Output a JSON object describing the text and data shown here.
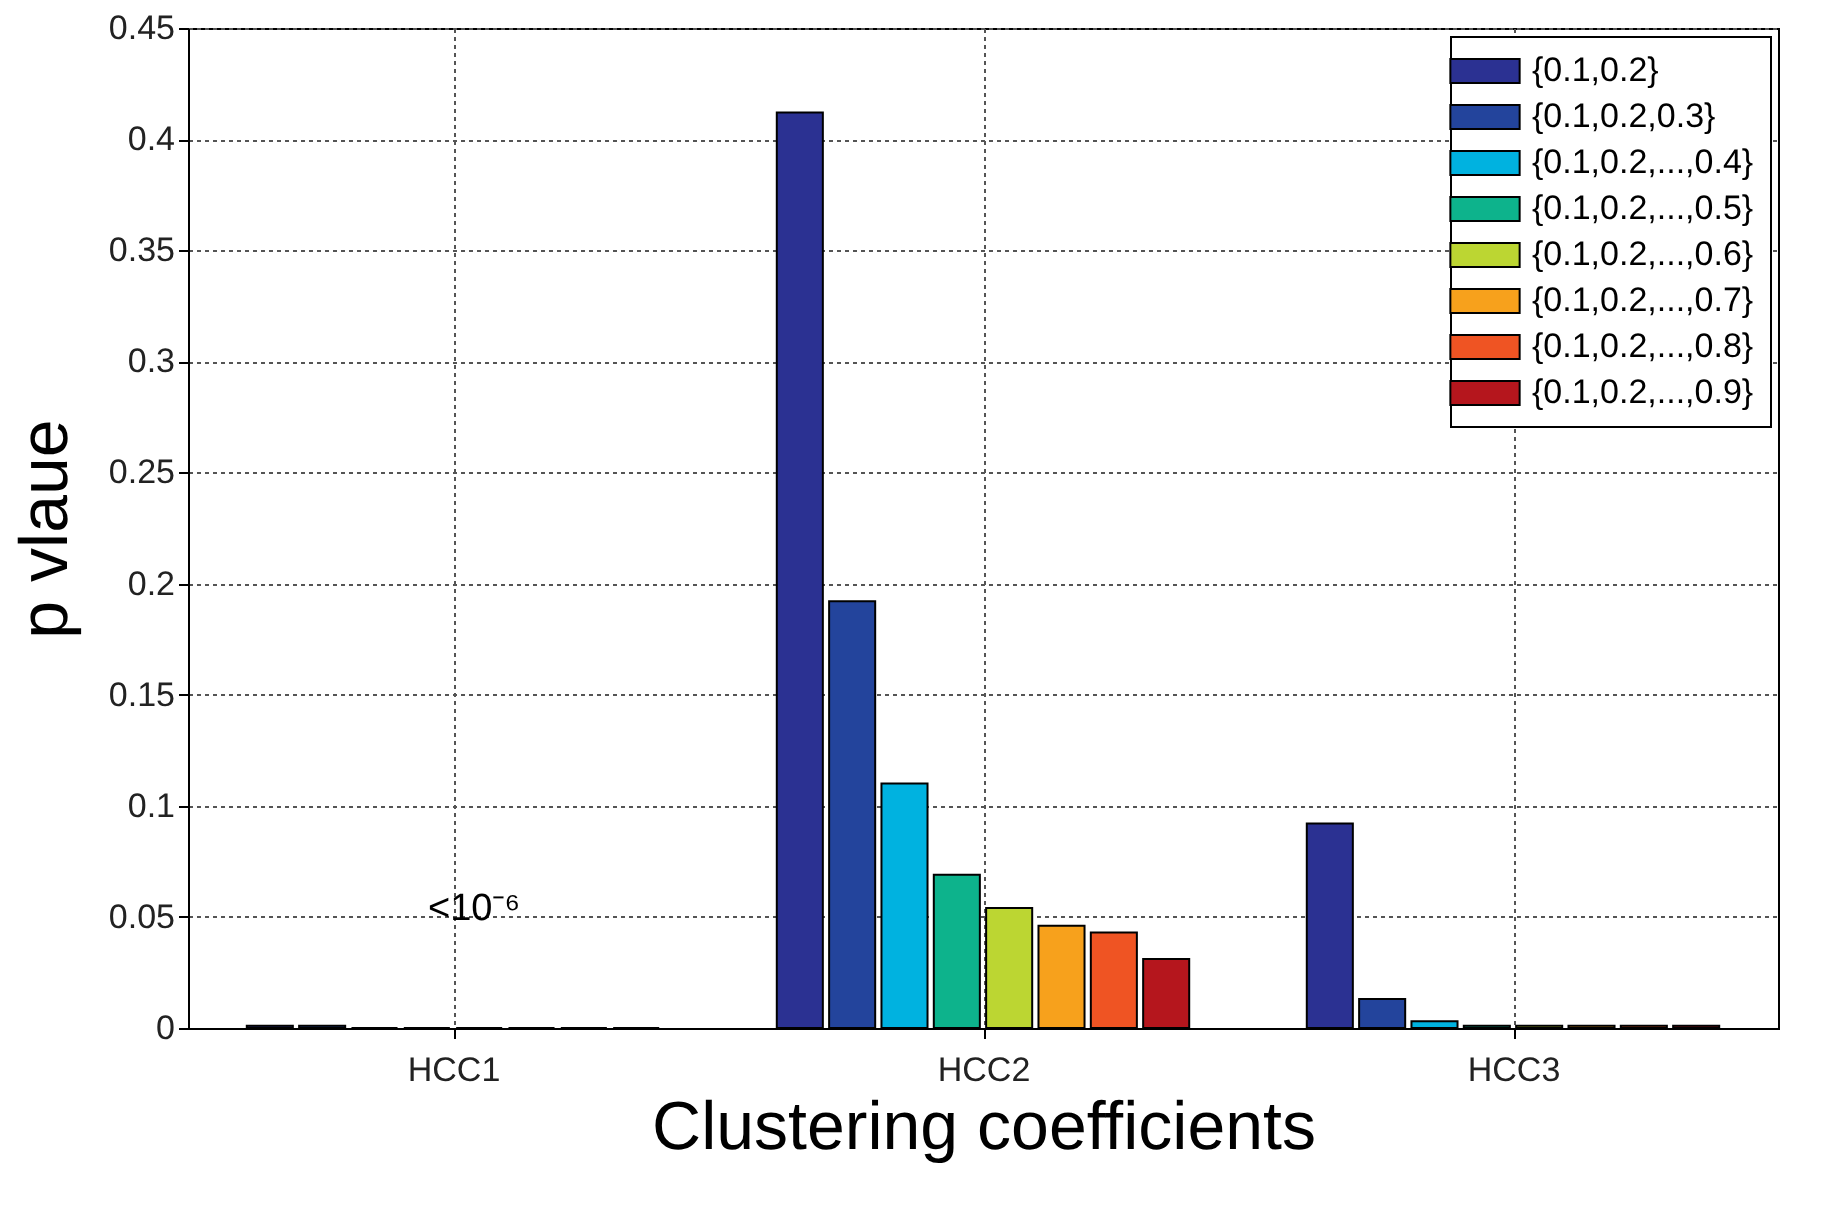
{
  "chart_data": {
    "type": "bar",
    "xlabel": "Clustering coefficients",
    "ylabel": "p vlaue",
    "categories": [
      "HCC1",
      "HCC2",
      "HCC3"
    ],
    "series": [
      {
        "name": "{0.1,0.2}",
        "color": "#2b3192",
        "values": [
          0.001,
          0.412,
          0.092
        ]
      },
      {
        "name": "{0.1,0.2,0.3}",
        "color": "#23449c",
        "values": [
          0.001,
          0.192,
          0.013
        ]
      },
      {
        "name": "{0.1,0.2,...,0.4}",
        "color": "#00b2e0",
        "values": [
          0,
          0.11,
          0.003
        ]
      },
      {
        "name": "{0.1,0.2,...,0.5}",
        "color": "#0db38c",
        "values": [
          0,
          0.069,
          0.001
        ]
      },
      {
        "name": "{0.1,0.2,...,0.6}",
        "color": "#bcd632",
        "values": [
          0,
          0.054,
          0.001
        ]
      },
      {
        "name": "{0.1,0.2,...,0.7}",
        "color": "#f7a11c",
        "values": [
          0,
          0.046,
          0.001
        ]
      },
      {
        "name": "{0.1,0.2,...,0.8}",
        "color": "#ef5423",
        "values": [
          0,
          0.043,
          0.001
        ]
      },
      {
        "name": "{0.1,0.2,...,0.9}",
        "color": "#b5161d",
        "values": [
          0,
          0.031,
          0.001
        ]
      }
    ],
    "ylim": [
      0,
      0.45
    ],
    "yticks": [
      0,
      0.05,
      0.1,
      0.15,
      0.2,
      0.25,
      0.3,
      0.35,
      0.4,
      0.45
    ],
    "grid": true,
    "legend": "top right",
    "annotations": [
      "<10⁻⁶"
    ]
  }
}
